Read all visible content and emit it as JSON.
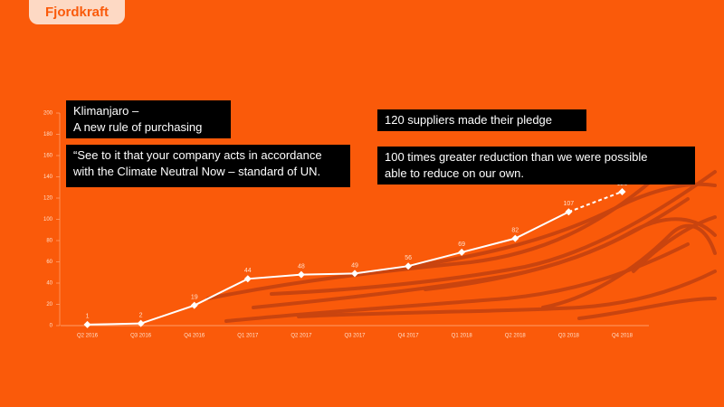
{
  "logo": "Fjordkraft",
  "annotations": [
    {
      "lines": [
        "Klimanjaro –",
        "A new rule of purchasing"
      ]
    },
    {
      "lines": [
        "“See to it that your company acts in accordance",
        "with the Climate Neutral Now – standard of UN."
      ]
    },
    {
      "lines": [
        "120 suppliers made their pledge"
      ]
    },
    {
      "lines": [
        "100 times greater reduction than we were possible",
        "able to reduce on our own."
      ]
    }
  ],
  "chart_data": {
    "type": "line",
    "categories": [
      "Q2 2016",
      "Q3 2016",
      "Q4 2016",
      "Q1 2017",
      "Q2 2017",
      "Q3 2017",
      "Q4 2017",
      "Q1 2018",
      "Q2 2018",
      "Q3 2018",
      "Q4 2018"
    ],
    "values": [
      1,
      2,
      19,
      44,
      48,
      49,
      56,
      69,
      82,
      107,
      126
    ],
    "color": "#ffffff",
    "dashed_segments": [
      9
    ],
    "ylim": [
      0,
      200
    ],
    "yticks": [
      0,
      20,
      40,
      60,
      80,
      100,
      120,
      140,
      160,
      180,
      200
    ]
  }
}
